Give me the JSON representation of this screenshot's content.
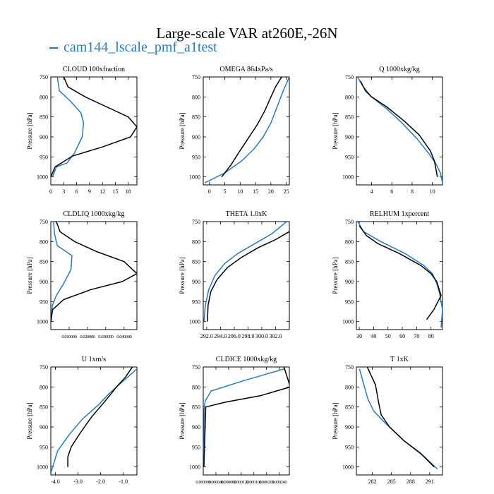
{
  "title": "Large-scale VAR at260E,-26N",
  "legend": "cam144_lscale_pmf_a1test",
  "colors": {
    "model": "#2b7bb9",
    "obs": "#000000"
  },
  "ylabel": "Pressure [hPa]",
  "chart_data": [
    {
      "type": "line",
      "title": "CLOUD 100xfraction",
      "xlim": [
        0,
        20
      ],
      "ylim": [
        1020,
        750
      ],
      "xticks": [
        0,
        3,
        6,
        9,
        12,
        15,
        18
      ],
      "xticklabels": [
        "0",
        "3",
        "6",
        "9",
        "12",
        "15",
        "18"
      ],
      "yticks": [
        750,
        800,
        850,
        900,
        950,
        1000
      ],
      "yticklabels": [
        "750",
        "800",
        "850",
        "900",
        "950",
        "1000"
      ],
      "series": [
        {
          "name": "cam144_lscale_pmf_a1test",
          "x": [
            1.5,
            2.0,
            4.5,
            7.0,
            7.6,
            7.3,
            5.5,
            3.8,
            1.3,
            0.4
          ],
          "y": [
            750,
            785,
            810,
            840,
            865,
            900,
            940,
            965,
            975,
            1000
          ]
        },
        {
          "name": "obs",
          "x": [
            3.0,
            4.0,
            8.0,
            13.0,
            18.0,
            20.0,
            18.5,
            12.0,
            5.0,
            1.0,
            0.0
          ],
          "y": [
            750,
            775,
            800,
            825,
            850,
            875,
            900,
            925,
            948,
            975,
            1000
          ]
        }
      ]
    },
    {
      "type": "line",
      "title": "OMEGA 864xPa/s",
      "xlim": [
        -2,
        26
      ],
      "ylim": [
        1020,
        750
      ],
      "xticks": [
        0,
        5,
        10,
        15,
        20,
        25
      ],
      "xticklabels": [
        "0",
        "5",
        "10",
        "15",
        "20",
        "25"
      ],
      "yticks": [
        750,
        800,
        850,
        900,
        950,
        1000
      ],
      "yticklabels": [
        "750",
        "800",
        "850",
        "900",
        "950",
        "1000"
      ],
      "series": [
        {
          "name": "cam144_lscale_pmf_a1test",
          "x": [
            -1.5,
            5.0,
            10.5,
            14.5,
            17.5,
            20.0,
            22.0,
            24.0,
            26.0
          ],
          "y": [
            1015,
            990,
            960,
            930,
            900,
            865,
            825,
            785,
            750
          ]
        },
        {
          "name": "obs",
          "x": [
            4.0,
            7.0,
            9.5,
            12.5,
            15.5,
            18.0,
            20.0,
            21.5,
            23.5
          ],
          "y": [
            1000,
            970,
            940,
            905,
            870,
            835,
            800,
            775,
            750
          ]
        }
      ]
    },
    {
      "type": "line",
      "title": "Q 1000xkg/kg",
      "xlim": [
        2.5,
        11
      ],
      "ylim": [
        1020,
        750
      ],
      "xticks": [
        4,
        6,
        8,
        10
      ],
      "xticklabels": [
        "4",
        "6",
        "8",
        "10"
      ],
      "yticks": [
        750,
        800,
        850,
        900,
        950,
        1000
      ],
      "yticklabels": [
        "750",
        "800",
        "850",
        "900",
        "950",
        "1000"
      ],
      "series": [
        {
          "name": "cam144_lscale_pmf_a1test",
          "x": [
            2.6,
            3.2,
            4.0,
            5.5,
            7.0,
            8.5,
            9.6,
            10.3,
            10.8,
            11.0
          ],
          "y": [
            750,
            775,
            800,
            830,
            865,
            905,
            940,
            965,
            990,
            1015
          ]
        },
        {
          "name": "obs",
          "x": [
            2.9,
            3.4,
            4.0,
            5.5,
            7.2,
            8.7,
            9.8,
            10.2,
            10.5
          ],
          "y": [
            760,
            785,
            800,
            825,
            860,
            895,
            935,
            960,
            1000
          ]
        }
      ]
    },
    {
      "type": "line",
      "title": "CLDLIQ 1000xkg/kg",
      "xlim": [
        0,
        0.047
      ],
      "ylim": [
        1020,
        750
      ],
      "xticks": [
        0.01,
        0.02,
        0.03,
        0.04
      ],
      "xticklabels": [
        "0.010000",
        "0.020000",
        "0.030000",
        "0.040000"
      ],
      "yticks": [
        750,
        800,
        850,
        900,
        950,
        1000
      ],
      "yticklabels": [
        "750",
        "800",
        "850",
        "900",
        "950",
        "1000"
      ],
      "series": [
        {
          "name": "cam144_lscale_pmf_a1test",
          "x": [
            0.0015,
            0.002,
            0.0035,
            0.0115,
            0.011,
            0.007,
            0.003,
            0.0008,
            0.0002
          ],
          "y": [
            750,
            780,
            810,
            835,
            870,
            905,
            935,
            960,
            1000
          ]
        },
        {
          "name": "obs",
          "x": [
            0.003,
            0.005,
            0.013,
            0.025,
            0.04,
            0.047,
            0.039,
            0.022,
            0.007,
            0.001,
            0.0
          ],
          "y": [
            750,
            775,
            800,
            825,
            850,
            880,
            900,
            920,
            945,
            970,
            1000
          ]
        }
      ]
    },
    {
      "type": "line",
      "title": "THETA 1.0xK",
      "xlim": [
        291.5,
        304.0
      ],
      "ylim": [
        1020,
        750
      ],
      "xticks": [
        292,
        294,
        296,
        298,
        300,
        302
      ],
      "xticklabels": [
        "292.0",
        "294.0",
        "296.0",
        "298.0",
        "300.0",
        "302.0"
      ],
      "yticks": [
        750,
        800,
        850,
        900,
        950,
        1000
      ],
      "yticklabels": [
        "750",
        "800",
        "850",
        "900",
        "950",
        "1000"
      ],
      "series": [
        {
          "name": "cam144_lscale_pmf_a1test",
          "x": [
            291.6,
            291.8,
            292.3,
            293.2,
            294.6,
            296.5,
            299.0,
            301.5,
            303.6
          ],
          "y": [
            1000,
            960,
            920,
            885,
            855,
            830,
            805,
            780,
            750
          ]
        },
        {
          "name": "obs",
          "x": [
            292.1,
            292.2,
            292.6,
            293.5,
            295.0,
            297.0,
            299.5,
            302.0,
            304.0
          ],
          "y": [
            1000,
            960,
            925,
            895,
            865,
            840,
            815,
            795,
            775
          ]
        }
      ]
    },
    {
      "type": "line",
      "title": "RELHUM 1xpercent",
      "xlim": [
        28,
        88
      ],
      "ylim": [
        1020,
        750
      ],
      "xticks": [
        30,
        40,
        50,
        60,
        70,
        80
      ],
      "xticklabels": [
        "30",
        "40",
        "50",
        "60",
        "70",
        "80"
      ],
      "yticks": [
        750,
        800,
        850,
        900,
        950,
        1000
      ],
      "yticklabels": [
        "750",
        "800",
        "850",
        "900",
        "950",
        "1000"
      ],
      "series": [
        {
          "name": "cam144_lscale_pmf_a1test",
          "x": [
            29,
            33,
            45,
            62,
            75,
            81,
            84,
            86,
            88,
            87
          ],
          "y": [
            750,
            775,
            800,
            830,
            860,
            880,
            905,
            930,
            970,
            1015
          ]
        },
        {
          "name": "obs",
          "x": [
            30,
            35,
            43,
            58,
            73,
            80,
            84,
            87,
            82,
            77
          ],
          "y": [
            760,
            785,
            805,
            830,
            860,
            880,
            900,
            935,
            970,
            995
          ]
        }
      ]
    },
    {
      "type": "line",
      "title": "U 1xm/s",
      "xlim": [
        -4.2,
        -0.4
      ],
      "ylim": [
        1020,
        750
      ],
      "xticks": [
        -4,
        -3,
        -2,
        -1
      ],
      "xticklabels": [
        "-4.0",
        "-3.0",
        "-2.0",
        "-1.0"
      ],
      "yticks": [
        750,
        800,
        850,
        900,
        950,
        1000
      ],
      "yticklabels": [
        "750",
        "800",
        "850",
        "900",
        "950",
        "1000"
      ],
      "series": [
        {
          "name": "cam144_lscale_pmf_a1test",
          "x": [
            -4.2,
            -3.9,
            -3.4,
            -2.8,
            -2.1,
            -1.6,
            -1.1,
            -0.7,
            -0.4
          ],
          "y": [
            1015,
            960,
            920,
            880,
            845,
            815,
            790,
            770,
            755
          ]
        },
        {
          "name": "obs",
          "x": [
            -3.45,
            -3.45,
            -3.3,
            -2.9,
            -2.4,
            -1.8,
            -1.3,
            -0.9,
            -0.6
          ],
          "y": [
            1000,
            975,
            950,
            915,
            875,
            835,
            800,
            775,
            750
          ]
        }
      ]
    },
    {
      "type": "line",
      "title": "CLDICE 1000xkg/kg",
      "xlim": [
        0,
        0.000272
      ],
      "ylim": [
        1020,
        750
      ],
      "xticks": [
        0,
        4e-05,
        8e-05,
        0.00012,
        0.00016,
        0.0002,
        0.00024
      ],
      "xticklabels": [
        "0.000000",
        "0.000040",
        "0.000080",
        "0.000120",
        "0.000160",
        "0.000200",
        "0.000240"
      ],
      "yticks": [
        750,
        800,
        850,
        900,
        950,
        1000
      ],
      "yticklabels": [
        "750",
        "800",
        "850",
        "900",
        "950",
        "1000"
      ],
      "series": [
        {
          "name": "cam144_lscale_pmf_a1test",
          "x": [
            0.000255,
            0.000125,
            2.5e-05,
            6e-06,
            3e-06,
            2e-06
          ],
          "y": [
            755,
            785,
            810,
            835,
            855,
            1000
          ]
        },
        {
          "name": "obs",
          "x": [
            0.000255,
            0.000275,
            0.00018,
            7e-05,
            8e-06,
            2e-06
          ],
          "y": [
            750,
            800,
            822,
            838,
            850,
            1000
          ]
        }
      ]
    },
    {
      "type": "line",
      "title": "T 1xK",
      "xlim": [
        279.5,
        293.0
      ],
      "ylim": [
        1020,
        750
      ],
      "xticks": [
        282,
        285,
        288,
        291
      ],
      "xticklabels": [
        "282",
        "285",
        "288",
        "291"
      ],
      "yticks": [
        750,
        800,
        850,
        900,
        950,
        1000
      ],
      "yticklabels": [
        "750",
        "800",
        "850",
        "900",
        "950",
        "1000"
      ],
      "series": [
        {
          "name": "cam144_lscale_pmf_a1test",
          "x": [
            280.0,
            280.6,
            281.3,
            282.2,
            284.0,
            287.0,
            290.2,
            292.2
          ],
          "y": [
            755,
            790,
            830,
            860,
            890,
            935,
            975,
            1005
          ]
        },
        {
          "name": "obs",
          "x": [
            281.2,
            282.5,
            283.0,
            283.4,
            284.7,
            287.0,
            289.5,
            291.7
          ],
          "y": [
            750,
            795,
            840,
            870,
            900,
            935,
            965,
            1000
          ]
        }
      ]
    }
  ]
}
